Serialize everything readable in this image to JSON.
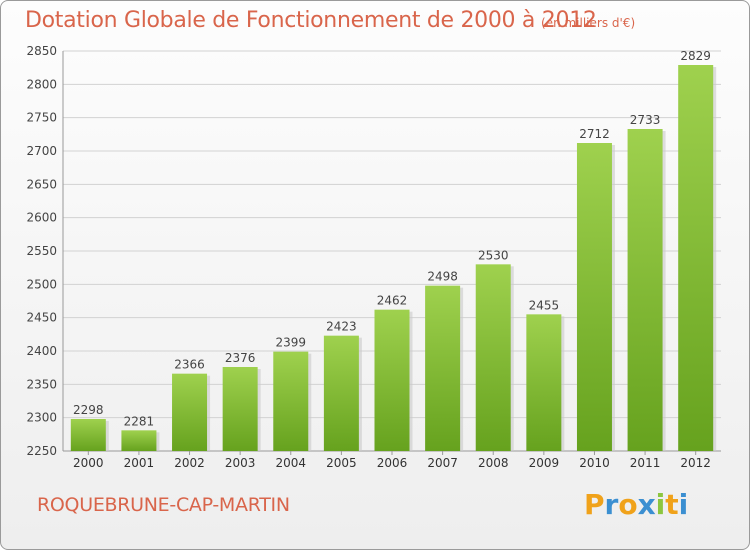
{
  "chart_data": {
    "type": "bar",
    "title": "Dotation Globale de Fonctionnement de 2000 à 2012",
    "subtitle": "(en milliers d'€)",
    "categories": [
      "2000",
      "2001",
      "2002",
      "2003",
      "2004",
      "2005",
      "2006",
      "2007",
      "2008",
      "2009",
      "2010",
      "2011",
      "2012"
    ],
    "values": [
      2298,
      2281,
      2366,
      2376,
      2399,
      2423,
      2462,
      2498,
      2530,
      2455,
      2712,
      2733,
      2829
    ],
    "ylim": [
      2250,
      2850
    ],
    "yticks": [
      2250,
      2300,
      2350,
      2400,
      2450,
      2500,
      2550,
      2600,
      2650,
      2700,
      2750,
      2800,
      2850
    ],
    "grid": true,
    "xlabel": "",
    "ylabel": "",
    "bar_color_top": "#9fd14e",
    "bar_color_bottom": "#66a21e"
  },
  "footer": {
    "city": "ROQUEBRUNE-CAP-MARTIN",
    "logo_text": "Proxiti"
  },
  "colors": {
    "accent": "#d9654b"
  }
}
